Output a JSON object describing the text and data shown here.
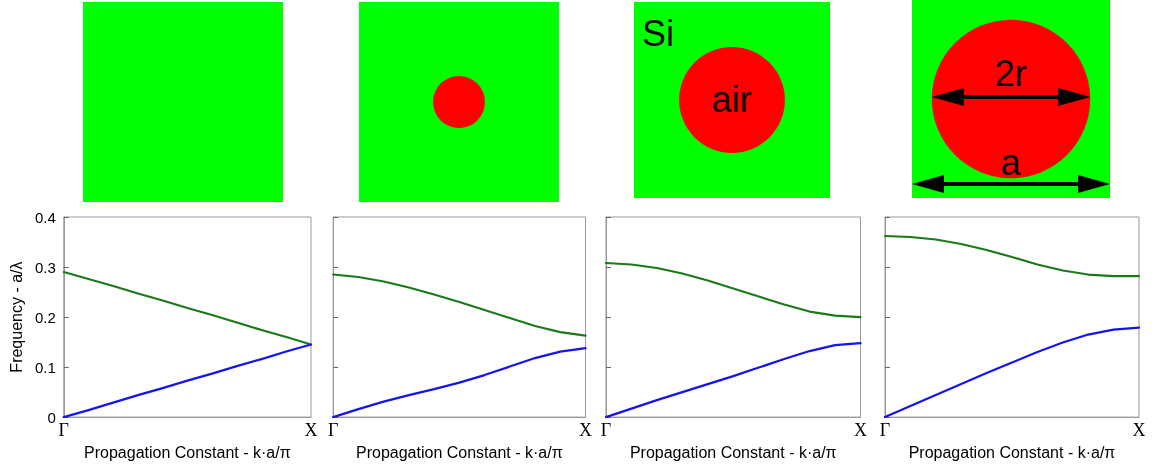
{
  "chart_data": [
    {
      "type": "line",
      "xlabel": "Propagation Constant - k·a/π",
      "ylabel": "Frequency - a/λ",
      "categories": [
        "Γ",
        null,
        null,
        null,
        null,
        null,
        null,
        null,
        null,
        null,
        "X"
      ],
      "ylim": [
        0,
        0.4
      ],
      "yticks": [
        0,
        0.1,
        0.2,
        0.3,
        0.4
      ],
      "grid": false,
      "marker": "none",
      "line_style": "solid",
      "series": [
        {
          "color": "#1a7a1a",
          "values": [
            0.29,
            0.276,
            0.262,
            0.247,
            0.233,
            0.218,
            0.204,
            0.189,
            0.174,
            0.16,
            0.145
          ]
        },
        {
          "color": "#1414ee",
          "values": [
            0,
            0.014,
            0.029,
            0.044,
            0.058,
            0.073,
            0.087,
            0.102,
            0.116,
            0.131,
            0.145
          ]
        }
      ]
    },
    {
      "type": "line",
      "xlabel": "Propagation Constant - k·a/π",
      "categories": [
        "Γ",
        null,
        null,
        null,
        null,
        null,
        null,
        null,
        null,
        null,
        "X"
      ],
      "ylim": [
        0,
        0.4
      ],
      "yticks": [
        {
          "value": 0,
          "label": null
        },
        {
          "value": 0.1,
          "label": null
        },
        {
          "value": 0.2,
          "label": null
        },
        {
          "value": 0.3,
          "label": null
        },
        {
          "value": 0.4,
          "label": null
        }
      ],
      "tick_labels": "x",
      "grid": false,
      "marker": "none",
      "line_style": "solid",
      "series": [
        {
          "color": "#1a7a1a",
          "values": [
            0.285,
            0.28,
            0.271,
            0.259,
            0.245,
            0.23,
            0.214,
            0.198,
            0.182,
            0.17,
            0.163
          ]
        },
        {
          "color": "#1414ee",
          "values": [
            0,
            0.016,
            0.031,
            0.044,
            0.056,
            0.069,
            0.084,
            0.101,
            0.118,
            0.131,
            0.138
          ]
        }
      ]
    },
    {
      "type": "line",
      "xlabel": "Propagation Constant - k·a/π",
      "categories": [
        "Γ",
        null,
        null,
        null,
        null,
        null,
        null,
        null,
        null,
        null,
        "X"
      ],
      "ylim": [
        0,
        0.4
      ],
      "yticks": [
        {
          "value": 0,
          "label": null
        },
        {
          "value": 0.1,
          "label": null
        },
        {
          "value": 0.2,
          "label": null
        },
        {
          "value": 0.3,
          "label": null
        },
        {
          "value": 0.4,
          "label": null
        }
      ],
      "tick_labels": "x",
      "grid": false,
      "marker": "none",
      "line_style": "solid",
      "annotations": [
        "Si",
        "air"
      ],
      "series": [
        {
          "color": "#1a7a1a",
          "values": [
            0.308,
            0.305,
            0.298,
            0.287,
            0.273,
            0.257,
            0.241,
            0.225,
            0.211,
            0.203,
            0.2
          ]
        },
        {
          "color": "#1414ee",
          "values": [
            0,
            0.017,
            0.034,
            0.05,
            0.066,
            0.082,
            0.099,
            0.116,
            0.132,
            0.144,
            0.148
          ]
        }
      ]
    },
    {
      "type": "line",
      "xlabel": "Propagation Constant - k·a/π",
      "categories": [
        "Γ",
        null,
        null,
        null,
        null,
        null,
        null,
        null,
        null,
        null,
        "X"
      ],
      "ylim": [
        0,
        0.4
      ],
      "yticks": [
        {
          "value": 0,
          "label": null
        },
        {
          "value": 0.1,
          "label": null
        },
        {
          "value": 0.2,
          "label": null
        },
        {
          "value": 0.3,
          "label": null
        },
        {
          "value": 0.4,
          "label": null
        }
      ],
      "tick_labels": "x",
      "grid": false,
      "marker": "none",
      "line_style": "solid",
      "annotations": [
        "2r",
        "a"
      ],
      "series": [
        {
          "color": "#1a7a1a",
          "values": [
            0.362,
            0.36,
            0.355,
            0.346,
            0.334,
            0.32,
            0.305,
            0.293,
            0.285,
            0.282,
            0.282
          ]
        },
        {
          "color": "#1414ee",
          "values": [
            0,
            0.022,
            0.044,
            0.066,
            0.088,
            0.109,
            0.13,
            0.149,
            0.165,
            0.175,
            0.179
          ]
        }
      ]
    }
  ]
}
